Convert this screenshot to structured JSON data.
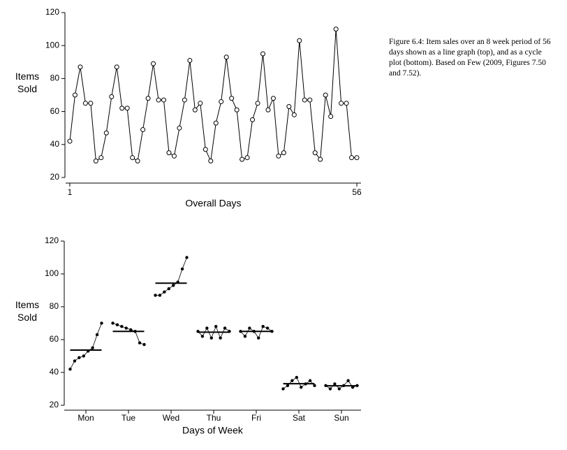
{
  "caption": "Figure 6.4: Item sales over an 8 week period of 56 days shown as a line graph (top), and as a cycle plot (bottom). Based on Few (2009, Figures 7.50 and 7.52).",
  "chart_data": [
    {
      "type": "line",
      "ylabel": "Items Sold",
      "xlabel": "Overall Days",
      "color": "#000000",
      "x": [
        1,
        2,
        3,
        4,
        5,
        6,
        7,
        8,
        9,
        10,
        11,
        12,
        13,
        14,
        15,
        16,
        17,
        18,
        19,
        20,
        21,
        22,
        23,
        24,
        25,
        26,
        27,
        28,
        29,
        30,
        31,
        32,
        33,
        34,
        35,
        36,
        37,
        38,
        39,
        40,
        41,
        42,
        43,
        44,
        45,
        46,
        47,
        48,
        49,
        50,
        51,
        52,
        53,
        54,
        55,
        56
      ],
      "values": [
        42,
        70,
        87,
        65,
        65,
        30,
        32,
        47,
        69,
        87,
        62,
        62,
        32,
        30,
        49,
        68,
        89,
        67,
        67,
        35,
        33,
        50,
        67,
        91,
        61,
        65,
        37,
        30,
        53,
        66,
        93,
        68,
        61,
        31,
        32,
        55,
        65,
        95,
        61,
        68,
        33,
        35,
        63,
        58,
        103,
        67,
        67,
        35,
        31,
        70,
        57,
        110,
        65,
        65,
        32,
        32
      ],
      "xlim": [
        0.2,
        56.8
      ],
      "xticks": [
        1,
        56
      ],
      "ylim": [
        20,
        120
      ],
      "yticks": [
        20,
        40,
        60,
        80,
        100,
        120
      ]
    },
    {
      "type": "cycle",
      "ylabel": "Items Sold",
      "xlabel": "Days of Week",
      "color": "#000000",
      "categories": [
        "Mon",
        "Tue",
        "Wed",
        "Thu",
        "Fri",
        "Sat",
        "Sun"
      ],
      "values": [
        [
          42,
          47,
          49,
          50,
          53,
          55,
          63,
          70
        ],
        [
          70,
          69,
          68,
          67,
          66,
          65,
          58,
          57
        ],
        [
          87,
          87,
          89,
          91,
          93,
          95,
          103,
          110
        ],
        [
          65,
          62,
          67,
          61,
          68,
          61,
          67,
          65
        ],
        [
          65,
          62,
          67,
          65,
          61,
          68,
          67,
          65
        ],
        [
          30,
          32,
          35,
          37,
          31,
          33,
          35,
          32
        ],
        [
          32,
          30,
          33,
          30,
          32,
          35,
          31,
          32
        ]
      ],
      "ylim": [
        20,
        120
      ],
      "yticks": [
        20,
        40,
        60,
        80,
        100,
        120
      ]
    }
  ]
}
